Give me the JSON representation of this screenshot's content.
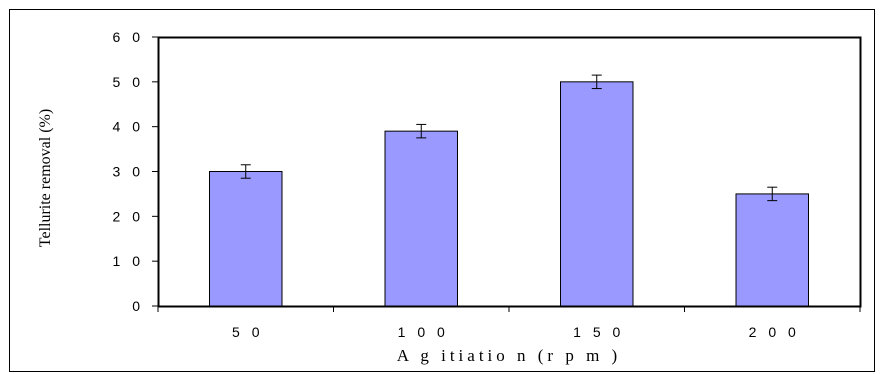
{
  "chart_data": {
    "type": "bar",
    "title": "",
    "xlabel": "A g itiatio n  (r p m )",
    "ylabel": "Tellurite removal (%)",
    "categories": [
      "5 0",
      "1 0 0",
      "1 5 0",
      "2 0 0"
    ],
    "values": [
      30,
      39,
      50,
      25
    ],
    "error": [
      1.5,
      1.5,
      1.5,
      1.5
    ],
    "ylim": [
      0,
      60
    ],
    "yticks": [
      0,
      10,
      20,
      30,
      40,
      50,
      60
    ],
    "ytick_labels": [
      "0",
      "1 0",
      "2 0",
      "3 0",
      "4 0",
      "5 0",
      "6 0"
    ],
    "grid": false,
    "legend": "none",
    "colors": {
      "bar_fill": "#9999ff",
      "bar_stroke": "#000000",
      "axis": "#000000",
      "frame": "#000000"
    }
  }
}
